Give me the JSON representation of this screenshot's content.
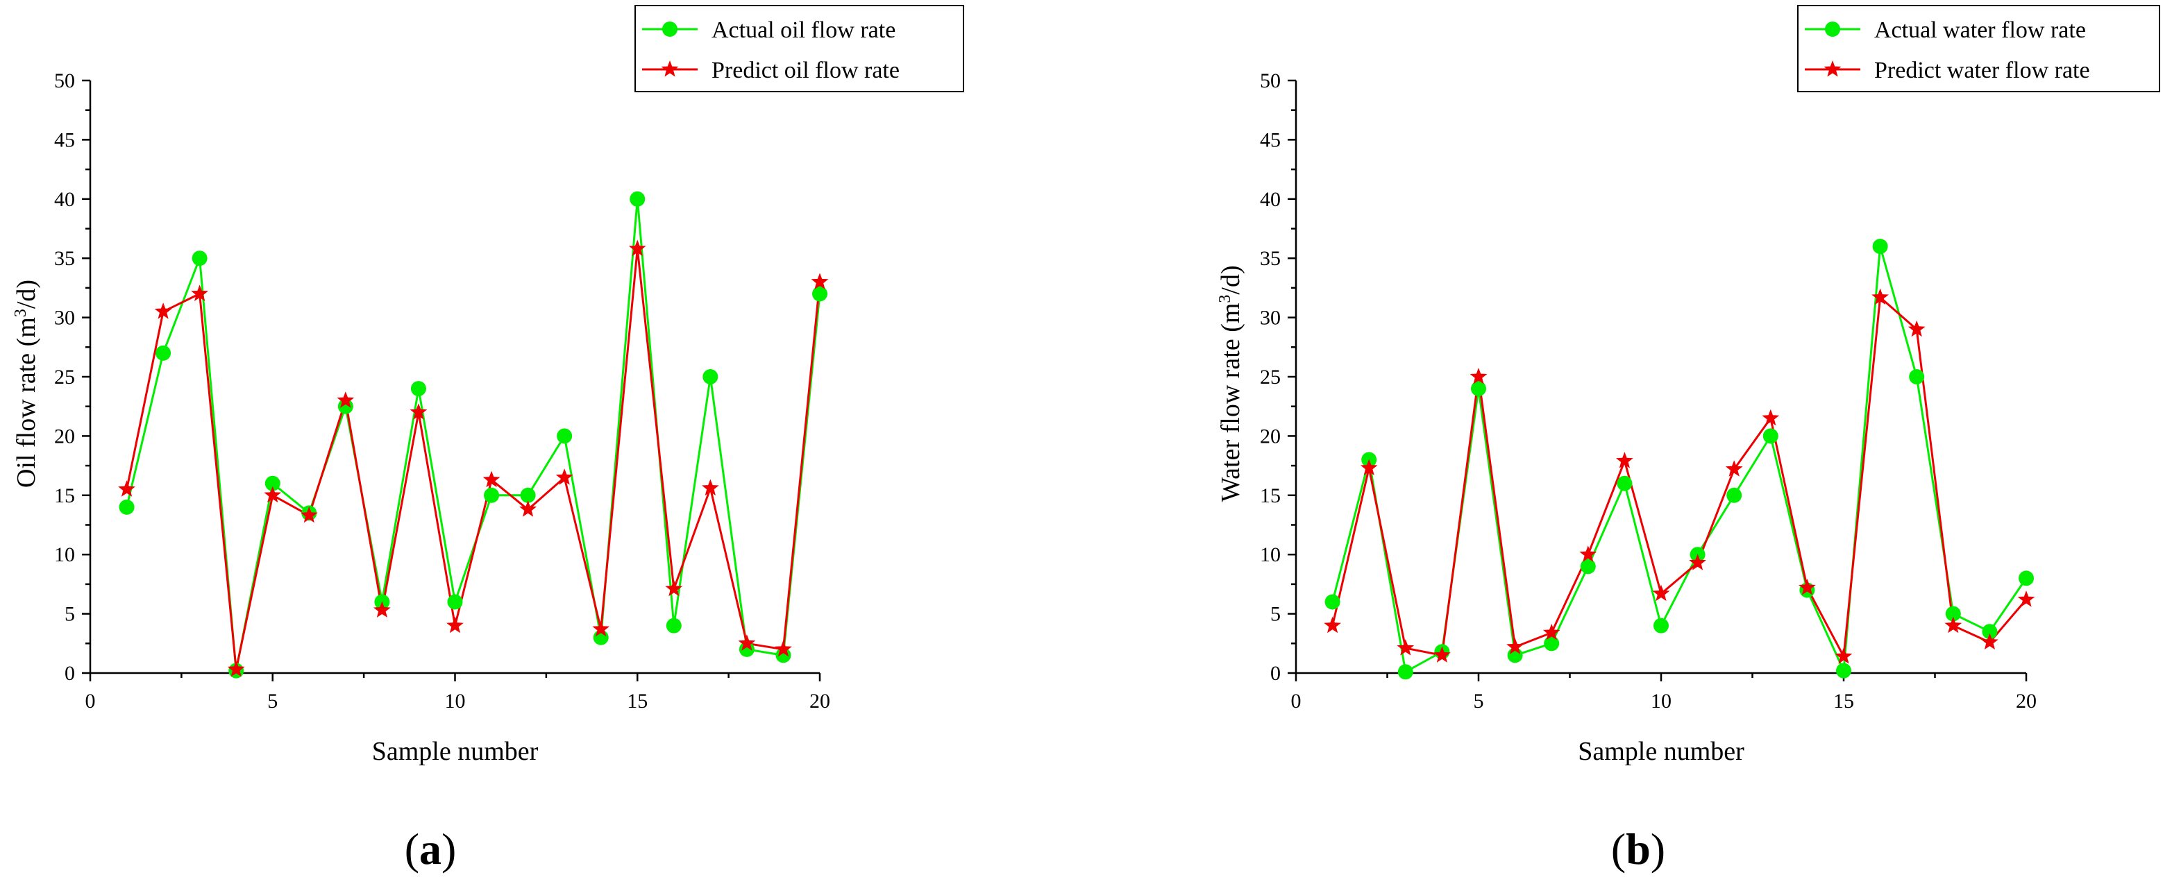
{
  "colors": {
    "actual": "#00ee00",
    "predict": "#ee0000"
  },
  "chart_data": [
    {
      "type": "line",
      "panel_label": "a",
      "xlabel": "Sample number",
      "ylabel_prefix": "Oil flow rate (m",
      "ylabel_sup": "3",
      "ylabel_suffix": "/d)",
      "xlim": [
        0,
        20
      ],
      "ylim": [
        0,
        50
      ],
      "xticks": [
        0,
        5,
        10,
        15,
        20
      ],
      "yticks": [
        0,
        5,
        10,
        15,
        20,
        25,
        30,
        35,
        40,
        45,
        50
      ],
      "legend_position": "top-right",
      "x": [
        1,
        2,
        3,
        4,
        5,
        6,
        7,
        8,
        9,
        10,
        11,
        12,
        13,
        14,
        15,
        16,
        17,
        18,
        19,
        20
      ],
      "series": [
        {
          "name": "Actual oil flow rate",
          "marker": "circle",
          "color_key": "actual",
          "values": [
            14,
            27,
            35,
            0.2,
            16,
            13.5,
            22.5,
            6,
            24,
            6,
            15,
            15,
            20,
            3,
            40,
            4,
            25,
            2,
            1.5,
            32
          ]
        },
        {
          "name": "Predict oil flow rate",
          "marker": "star",
          "color_key": "predict",
          "values": [
            15.5,
            30.5,
            32,
            0.3,
            15,
            13.3,
            23,
            5.3,
            22,
            4,
            16.3,
            13.8,
            16.5,
            3.7,
            35.8,
            7.1,
            15.6,
            2.5,
            2,
            33
          ]
        }
      ]
    },
    {
      "type": "line",
      "panel_label": "b",
      "xlabel": "Sample number",
      "ylabel_prefix": "Water flow rate (m",
      "ylabel_sup": "3",
      "ylabel_suffix": "/d)",
      "xlim": [
        0,
        20
      ],
      "ylim": [
        0,
        50
      ],
      "xticks": [
        0,
        5,
        10,
        15,
        20
      ],
      "yticks": [
        0,
        5,
        10,
        15,
        20,
        25,
        30,
        35,
        40,
        45,
        50
      ],
      "legend_position": "top-right",
      "x": [
        1,
        2,
        3,
        4,
        5,
        6,
        7,
        8,
        9,
        10,
        11,
        12,
        13,
        14,
        15,
        16,
        17,
        18,
        19,
        20
      ],
      "series": [
        {
          "name": "Actual water flow rate",
          "marker": "circle",
          "color_key": "actual",
          "values": [
            6,
            18,
            0.1,
            1.8,
            24,
            1.5,
            2.5,
            9,
            16,
            4,
            10,
            15,
            20,
            7,
            0.2,
            36,
            25,
            5,
            3.5,
            8
          ]
        },
        {
          "name": "Predict water flow rate",
          "marker": "star",
          "color_key": "predict",
          "values": [
            4,
            17.3,
            2.1,
            1.5,
            25,
            2.2,
            3.4,
            10,
            17.9,
            6.7,
            9.3,
            17.2,
            21.5,
            7.2,
            1.4,
            31.7,
            29,
            4,
            2.6,
            6.2
          ]
        }
      ]
    }
  ]
}
